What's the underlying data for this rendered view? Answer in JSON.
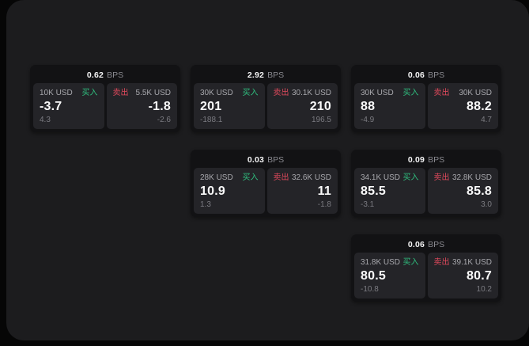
{
  "labels": {
    "buy": "买入",
    "sell": "卖出",
    "bps_unit": "BPS"
  },
  "colors": {
    "buy": "#2fbf7f",
    "sell": "#e0495c",
    "surface": "#1c1c1e",
    "card": "#121214",
    "pane": "#242428"
  },
  "cards": [
    {
      "bps": "0.62",
      "buy": {
        "size": "10K USD",
        "value": "-3.7",
        "sub": "4.3"
      },
      "sell": {
        "size": "5.5K USD",
        "value": "-1.8",
        "sub": "-2.6"
      }
    },
    {
      "bps": "2.92",
      "buy": {
        "size": "30K USD",
        "value": "201",
        "sub": "-188.1"
      },
      "sell": {
        "size": "30.1K USD",
        "value": "210",
        "sub": "196.5"
      }
    },
    {
      "bps": "0.06",
      "buy": {
        "size": "30K USD",
        "value": "88",
        "sub": "-4.9"
      },
      "sell": {
        "size": "30K USD",
        "value": "88.2",
        "sub": "4.7"
      }
    },
    {
      "bps": "0.03",
      "buy": {
        "size": "28K USD",
        "value": "10.9",
        "sub": "1.3"
      },
      "sell": {
        "size": "32.6K USD",
        "value": "11",
        "sub": "-1.8"
      }
    },
    {
      "bps": "0.09",
      "buy": {
        "size": "34.1K USD",
        "value": "85.5",
        "sub": "-3.1"
      },
      "sell": {
        "size": "32.8K USD",
        "value": "85.8",
        "sub": "3.0"
      }
    },
    {
      "bps": "0.06",
      "buy": {
        "size": "31.8K USD",
        "value": "80.5",
        "sub": "-10.8"
      },
      "sell": {
        "size": "39.1K USD",
        "value": "80.7",
        "sub": "10.2"
      }
    }
  ]
}
